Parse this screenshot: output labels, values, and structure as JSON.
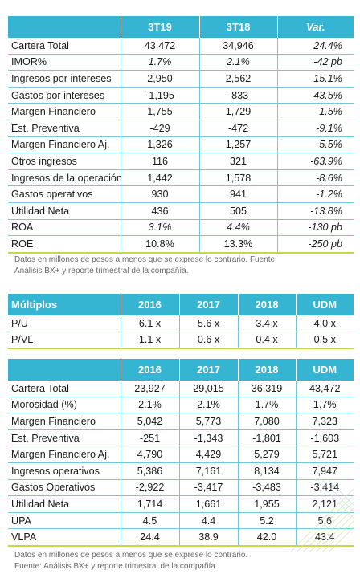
{
  "table1": {
    "headers": [
      "",
      "3T19",
      "3T18",
      "Var."
    ],
    "rows": [
      {
        "label": "Cartera Total",
        "c1": "43,472",
        "c2": "34,946",
        "var": "24.4%"
      },
      {
        "label": "IMOR%",
        "c1": "1.7%",
        "c2": "2.1%",
        "var": "-42 pb"
      },
      {
        "label": "Ingresos por intereses",
        "c1": "2,950",
        "c2": "2,562",
        "var": "15.1%"
      },
      {
        "label": "Gastos por intereses",
        "c1": "-1,195",
        "c2": "-833",
        "var": "43.5%"
      },
      {
        "label": "Margen Financiero",
        "c1": "1,755",
        "c2": "1,729",
        "var": "1.5%"
      },
      {
        "label": "Est. Preventiva",
        "c1": "-429",
        "c2": "-472",
        "var": "-9.1%"
      },
      {
        "label": "Margen Financiero Aj.",
        "c1": "1,326",
        "c2": "1,257",
        "var": "5.5%"
      },
      {
        "label": "Otros ingresos",
        "c1": "116",
        "c2": "321",
        "var": "-63.9%"
      },
      {
        "label": "Ingresos de la operación",
        "c1": "1,442",
        "c2": "1,578",
        "var": "-8.6%"
      },
      {
        "label": "Gastos operativos",
        "c1": "930",
        "c2": "941",
        "var": "-1.2%"
      },
      {
        "label": "Utilidad Neta",
        "c1": "436",
        "c2": "505",
        "var": "-13.8%"
      },
      {
        "label": "ROA",
        "c1": "3.1%",
        "c2": "4.4%",
        "var": "-130 pb"
      },
      {
        "label": "ROE",
        "c1": "10.8%",
        "c2": "13.3%",
        "var": "-250 pb"
      }
    ],
    "footnote_line1": "Datos en millones de pesos a menos que se exprese lo contrario. Fuente:",
    "footnote_line2": "Análisis BX+ y reporte trimestral de la compañía."
  },
  "table2": {
    "headers": [
      "Múltiplos",
      "2016",
      "2017",
      "2018",
      "UDM"
    ],
    "rows": [
      {
        "label": "P/U",
        "v": [
          "6.1 x",
          "5.6 x",
          "3.4 x",
          "4.0 x"
        ]
      },
      {
        "label": "P/VL",
        "v": [
          "1.1 x",
          "0.6 x",
          "0.4 x",
          "0.5 x"
        ]
      }
    ]
  },
  "table3": {
    "headers": [
      "",
      "2016",
      "2017",
      "2018",
      "UDM"
    ],
    "rows": [
      {
        "label": "Cartera Total",
        "v": [
          "23,927",
          "29,015",
          "36,319",
          "43,472"
        ]
      },
      {
        "label": "Morosidad (%)",
        "v": [
          "2.1%",
          "2.1%",
          "1.7%",
          "1.7%"
        ]
      },
      {
        "label": "Margen Financiero",
        "v": [
          "5,042",
          "5,773",
          "7,080",
          "7,323"
        ]
      },
      {
        "label": "Est. Preventiva",
        "v": [
          "-251",
          "-1,343",
          "-1,801",
          "-1,603"
        ]
      },
      {
        "label": "Margen Financiero Aj.",
        "v": [
          "4,790",
          "4,429",
          "5,279",
          "5,721"
        ]
      },
      {
        "label": "Ingresos operativos",
        "v": [
          "5,386",
          "7,161",
          "8,134",
          "7,947"
        ]
      },
      {
        "label": "Gastos Operativos",
        "v": [
          "-2,922",
          "-3,417",
          "-3,483",
          "-3,414"
        ]
      },
      {
        "label": "Utilidad Neta",
        "v": [
          "1,714",
          "1,661",
          "1,955",
          "2,121"
        ]
      },
      {
        "label": "UPA",
        "v": [
          "4.5",
          "4.4",
          "5.2",
          "5.6"
        ]
      },
      {
        "label": "VLPA",
        "v": [
          "24.4",
          "38.9",
          "42.0",
          "43.4"
        ]
      }
    ],
    "footnote_line1": "Datos en millones de pesos a menos que se exprese lo contrario.",
    "footnote_line2": "Fuente: Análisis BX+ y reporte trimestral de la compañía."
  }
}
